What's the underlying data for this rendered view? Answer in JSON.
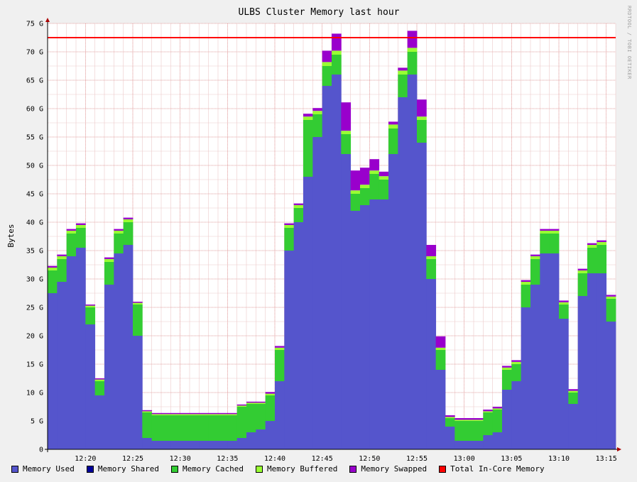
{
  "chart_data": {
    "type": "area",
    "title": "ULBS Cluster Memory last hour",
    "ylabel": "Bytes",
    "xlabel": "",
    "ylim": [
      0,
      75
    ],
    "y_unit": "G",
    "y_ticks": [
      "0",
      "5 G",
      "10 G",
      "15 G",
      "20 G",
      "25 G",
      "30 G",
      "35 G",
      "40 G",
      "45 G",
      "50 G",
      "55 G",
      "60 G",
      "65 G",
      "70 G",
      "75 G"
    ],
    "x_ticks": [
      "12:20",
      "12:25",
      "12:30",
      "12:35",
      "12:40",
      "12:45",
      "12:50",
      "12:55",
      "13:00",
      "13:05",
      "13:10",
      "13:15"
    ],
    "x_start": "12:16",
    "x_end": "13:16",
    "watermark": "RRDTOOL / TOBI OETIKER",
    "grid": true,
    "legend_position": "bottom",
    "series": [
      {
        "name": "Memory Used",
        "color": "#5555cc"
      },
      {
        "name": "Memory Shared",
        "color": "#000099"
      },
      {
        "name": "Memory Cached",
        "color": "#33cc33"
      },
      {
        "name": "Memory Buffered",
        "color": "#99ff33"
      },
      {
        "name": "Memory Swapped",
        "color": "#9900cc"
      },
      {
        "name": "Total In-Core Memory",
        "color": "#ff0000"
      }
    ],
    "total_in_core_memory": 72.5,
    "x": [
      "12:16",
      "12:17",
      "12:18",
      "12:19",
      "12:20",
      "12:21",
      "12:22",
      "12:23",
      "12:24",
      "12:25",
      "12:26",
      "12:27",
      "12:28",
      "12:29",
      "12:30",
      "12:31",
      "12:32",
      "12:33",
      "12:34",
      "12:35",
      "12:36",
      "12:37",
      "12:38",
      "12:39",
      "12:40",
      "12:41",
      "12:42",
      "12:43",
      "12:44",
      "12:45",
      "12:46",
      "12:47",
      "12:48",
      "12:49",
      "12:50",
      "12:51",
      "12:52",
      "12:53",
      "12:54",
      "12:55",
      "12:56",
      "12:57",
      "12:58",
      "12:59",
      "13:00",
      "13:01",
      "13:02",
      "13:03",
      "13:04",
      "13:05",
      "13:06",
      "13:07",
      "13:08",
      "13:09",
      "13:10",
      "13:11",
      "13:12",
      "13:13",
      "13:14",
      "13:15"
    ],
    "used": [
      27.5,
      29.5,
      34.0,
      35.5,
      22.0,
      9.5,
      29.0,
      34.5,
      36.0,
      20.0,
      2.0,
      1.5,
      1.5,
      1.5,
      1.5,
      1.5,
      1.5,
      1.5,
      1.5,
      1.5,
      2.0,
      3.0,
      3.5,
      5.0,
      12.0,
      35.0,
      40.0,
      48.0,
      55.0,
      64.0,
      66.0,
      52.0,
      42.0,
      43.0,
      44.0,
      44.0,
      52.0,
      62.0,
      66.0,
      54.0,
      30.0,
      14.0,
      4.0,
      1.5,
      1.5,
      1.5,
      2.5,
      3.0,
      10.5,
      12.0,
      25.0,
      29.0,
      34.5,
      34.5,
      23.0,
      8.0,
      27.0,
      31.0,
      31.0,
      22.5
    ],
    "cached": [
      4.0,
      4.0,
      4.0,
      3.5,
      3.0,
      2.5,
      4.0,
      3.5,
      4.0,
      5.5,
      4.5,
      4.5,
      4.5,
      4.5,
      4.5,
      4.5,
      4.5,
      4.5,
      4.5,
      4.5,
      5.5,
      5.0,
      4.5,
      4.5,
      5.5,
      4.0,
      2.5,
      10.0,
      4.0,
      3.5,
      3.5,
      3.5,
      3.0,
      3.0,
      4.5,
      3.5,
      4.5,
      4.0,
      4.0,
      4.0,
      3.5,
      3.5,
      1.5,
      3.5,
      3.5,
      3.5,
      4.0,
      4.0,
      3.5,
      3.0,
      4.0,
      4.5,
      3.5,
      3.5,
      2.5,
      2.0,
      4.0,
      4.5,
      5.0,
      4.0
    ],
    "buffered": [
      0.5,
      0.5,
      0.5,
      0.5,
      0.3,
      0.3,
      0.5,
      0.5,
      0.5,
      0.3,
      0.2,
      0.2,
      0.2,
      0.2,
      0.2,
      0.2,
      0.2,
      0.2,
      0.2,
      0.2,
      0.2,
      0.2,
      0.2,
      0.3,
      0.4,
      0.5,
      0.5,
      0.6,
      0.6,
      0.7,
      0.7,
      0.6,
      0.6,
      0.6,
      0.6,
      0.6,
      0.7,
      0.7,
      0.7,
      0.6,
      0.5,
      0.4,
      0.2,
      0.2,
      0.2,
      0.2,
      0.2,
      0.2,
      0.4,
      0.4,
      0.5,
      0.5,
      0.5,
      0.5,
      0.4,
      0.3,
      0.5,
      0.5,
      0.5,
      0.4
    ],
    "swapped": [
      0.3,
      0.3,
      0.3,
      0.3,
      0.2,
      0.2,
      0.3,
      0.3,
      0.3,
      0.2,
      0.2,
      0.2,
      0.2,
      0.2,
      0.2,
      0.2,
      0.2,
      0.2,
      0.2,
      0.2,
      0.2,
      0.2,
      0.2,
      0.3,
      0.3,
      0.3,
      0.3,
      0.5,
      0.5,
      2.0,
      3.0,
      5.0,
      3.5,
      3.0,
      2.0,
      0.8,
      0.5,
      0.5,
      3.0,
      3.0,
      2.0,
      2.0,
      0.3,
      0.3,
      0.3,
      0.3,
      0.3,
      0.3,
      0.3,
      0.3,
      0.3,
      0.3,
      0.3,
      0.3,
      0.3,
      0.3,
      0.3,
      0.3,
      0.3,
      0.3
    ]
  }
}
